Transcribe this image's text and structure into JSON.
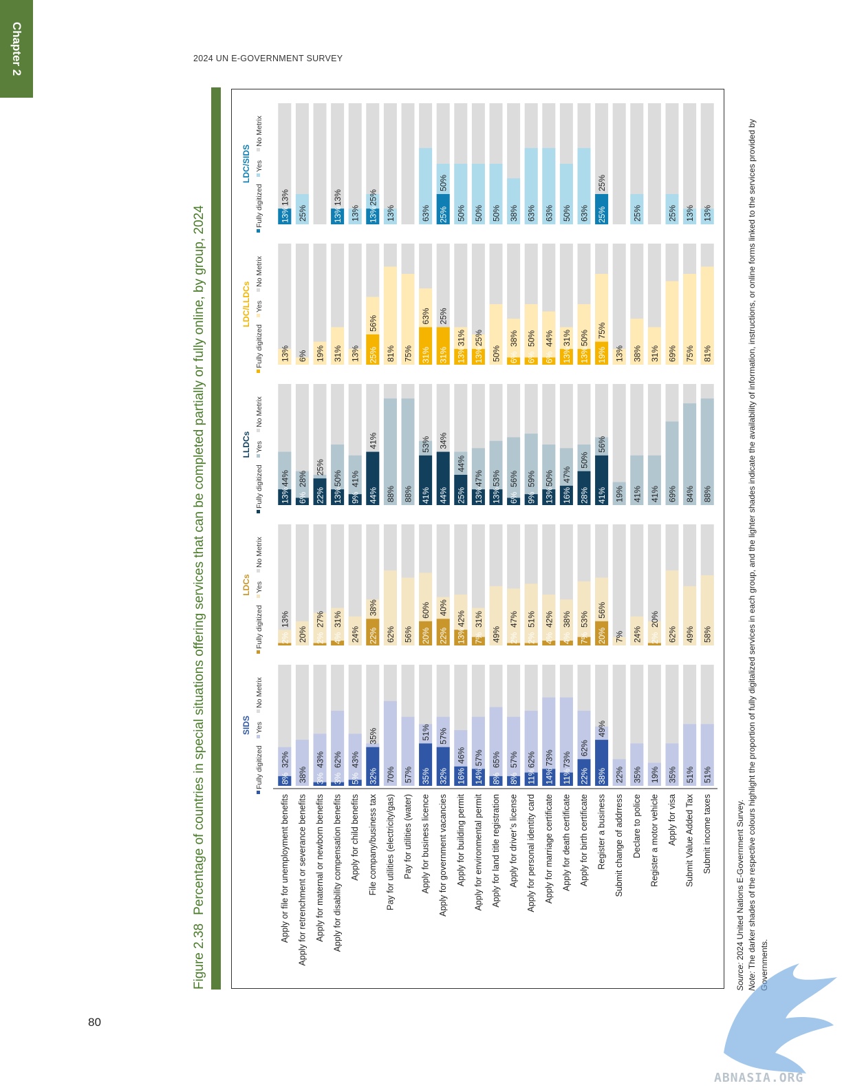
{
  "chapter_tab": "Chapter 2",
  "running_head": "2024 UN E-GOVERNMENT SURVEY",
  "page_number": "80",
  "figure": {
    "number": "Figure 2.38",
    "title": "Percentage of countries in special situations offering services that can be completed partially or fully online, by group, 2024"
  },
  "source_label": "Source:",
  "source_text": " 2024 United Nations E-Government Survey.",
  "note_label": "Note:",
  "note_text": " The darker shades of the respective colours highlight the proportion of fully digitalized services in each group, and the lighter shades indicate the availability of information, instructions, or online forms linked to the services provided by Governments.",
  "watermark": "ABNASIA.ORG",
  "colors": {
    "no_metrix": "#dcdcdc",
    "SIDS": {
      "fully": "#2f57a5",
      "yes": "#c1c9e6"
    },
    "LDCs": {
      "fully": "#c9962c",
      "yes": "#f4e5c3"
    },
    "LLDCs": {
      "fully": "#113f5c",
      "yes": "#b2c6d0"
    },
    "LDC/LLDCs": {
      "fully": "#f5b400",
      "yes": "#ffeab6"
    },
    "LDC/SIDS": {
      "fully": "#0f7eb3",
      "yes": "#aedbec"
    },
    "title_green": "#4b7c2a",
    "tab_green": "#5a7f3a"
  },
  "chart_data": {
    "type": "bar",
    "orientation": "horizontal stacked, 100%",
    "legend_labels": [
      "Fully digitized",
      "Yes",
      "No Metrix"
    ],
    "categories": [
      "Apply or file for unemployment benefits",
      "Apply for retrenchment or severance benefits",
      "Apply for maternal or newborn benefits",
      "Apply for disability compensation benefits",
      "Apply for child benefits",
      "File company/business tax",
      "Pay for utilities (electricity/gas)",
      "Pay for utilities (water)",
      "Apply for business licence",
      "Apply for government vacancies",
      "Apply for building permit",
      "Apply for environmental permit",
      "Apply for land title registration",
      "Apply for driver’s license",
      "Apply for personal identity card",
      "Apply for marriage certificate",
      "Apply for death certificate",
      "Apply for birth certificate",
      "Register a business",
      "Submit change of addrress",
      "Declare to police",
      "Register a motor vehicle",
      "Apply for visa",
      "Submit Value Added Tax",
      "Submit income taxes"
    ],
    "panels": [
      {
        "name": "SIDS",
        "fully": [
          8,
          0,
          3,
          3,
          5,
          32,
          0,
          0,
          35,
          32,
          16,
          14,
          8,
          8,
          11,
          14,
          11,
          22,
          38,
          0,
          0,
          0,
          0,
          0,
          0
        ],
        "yes": [
          32,
          38,
          43,
          62,
          43,
          35,
          70,
          57,
          51,
          57,
          46,
          57,
          65,
          57,
          62,
          73,
          73,
          62,
          49,
          22,
          35,
          19,
          35,
          51,
          51
        ]
      },
      {
        "name": "LDCs",
        "fully": [
          2,
          0,
          2,
          4,
          0,
          22,
          0,
          0,
          20,
          22,
          13,
          7,
          0,
          2,
          2,
          4,
          4,
          7,
          20,
          0,
          0,
          2,
          0,
          0,
          0
        ],
        "yes": [
          13,
          20,
          27,
          31,
          24,
          38,
          62,
          56,
          60,
          40,
          42,
          31,
          49,
          47,
          51,
          42,
          38,
          53,
          56,
          7,
          24,
          20,
          62,
          49,
          58
        ]
      },
      {
        "name": "LLDCs",
        "fully": [
          13,
          6,
          22,
          13,
          9,
          44,
          0,
          0,
          41,
          44,
          25,
          13,
          13,
          6,
          9,
          13,
          16,
          28,
          41,
          0,
          0,
          0,
          0,
          0,
          0
        ],
        "yes": [
          44,
          28,
          25,
          50,
          41,
          41,
          88,
          88,
          53,
          34,
          44,
          47,
          53,
          56,
          59,
          50,
          47,
          50,
          56,
          19,
          41,
          41,
          69,
          84,
          88
        ]
      },
      {
        "name": "LDC/LLDCs",
        "fully": [
          0,
          0,
          0,
          0,
          0,
          25,
          0,
          0,
          31,
          31,
          13,
          13,
          0,
          6,
          6,
          6,
          13,
          13,
          19,
          0,
          0,
          0,
          0,
          0,
          0
        ],
        "yes": [
          13,
          6,
          19,
          31,
          13,
          56,
          81,
          75,
          63,
          25,
          31,
          25,
          50,
          38,
          50,
          44,
          31,
          50,
          75,
          13,
          38,
          31,
          69,
          75,
          81
        ]
      },
      {
        "name": "LDC/SIDS",
        "fully": [
          13,
          0,
          0,
          13,
          0,
          13,
          0,
          0,
          0,
          25,
          0,
          0,
          0,
          0,
          0,
          0,
          0,
          0,
          25,
          0,
          0,
          0,
          0,
          0,
          0
        ],
        "yes": [
          13,
          25,
          0,
          13,
          13,
          25,
          13,
          0,
          63,
          50,
          50,
          50,
          50,
          38,
          63,
          63,
          50,
          63,
          25,
          0,
          25,
          0,
          25,
          13,
          13
        ]
      }
    ],
    "xlim": [
      0,
      100
    ]
  }
}
